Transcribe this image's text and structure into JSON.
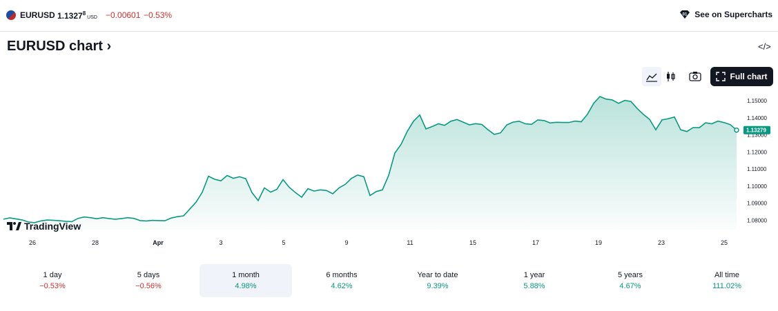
{
  "header": {
    "symbol": "EURUSD",
    "price_main": "1.1327",
    "price_sup": "8",
    "currency": "USD",
    "change": "−0.00601",
    "change_pct": "−0.53%",
    "supercharts_label": "See on Supercharts"
  },
  "title": "EURUSD chart",
  "title_chevron": "›",
  "embed_icon_glyph": "</>",
  "toolbar": {
    "full_chart_label": "Full chart"
  },
  "logo_text": "TradingView",
  "colors": {
    "line": "#089981",
    "negative": "#d32f2f",
    "positive": "#089981",
    "text": "#131722"
  },
  "chart_data": {
    "type": "area",
    "x_tick_labels": [
      "26",
      "28",
      "Apr",
      "3",
      "5",
      "9",
      "11",
      "15",
      "17",
      "19",
      "23",
      "25"
    ],
    "y_tick_labels": [
      "1.15000",
      "1.14000",
      "1.13000",
      "1.12000",
      "1.11000",
      "1.10000",
      "1.09000",
      "1.08000"
    ],
    "y_ticks": [
      1.15,
      1.14,
      1.13,
      1.12,
      1.11,
      1.1,
      1.09,
      1.08
    ],
    "ylim": [
      1.0745,
      1.1545
    ],
    "last_price_label": "1.13279",
    "last_price": 1.13279,
    "series": [
      {
        "values": [
          1.0806,
          1.0814,
          1.0808,
          1.0802,
          1.079,
          1.0786,
          1.0796,
          1.0801,
          1.08,
          1.0797,
          1.0794,
          1.0792,
          1.0811,
          1.0819,
          1.0815,
          1.0809,
          1.0815,
          1.081,
          1.0806,
          1.081,
          1.0815,
          1.0811,
          1.0798,
          1.0796,
          1.0799,
          1.0798,
          1.0797,
          1.0813,
          1.0821,
          1.0826,
          1.0866,
          1.0906,
          1.0964,
          1.1058,
          1.104,
          1.1031,
          1.1062,
          1.1046,
          1.1055,
          1.1043,
          1.0962,
          1.0915,
          1.099,
          1.0965,
          1.0981,
          1.1038,
          1.0993,
          1.0962,
          1.0935,
          1.0985,
          1.0971,
          1.0978,
          1.0974,
          1.0955,
          1.0989,
          1.101,
          1.1045,
          1.1065,
          1.1055,
          1.0945,
          1.0968,
          1.0978,
          1.1063,
          1.1194,
          1.1245,
          1.1321,
          1.138,
          1.1417,
          1.1335,
          1.1349,
          1.1365,
          1.1356,
          1.138,
          1.139,
          1.1375,
          1.1359,
          1.1366,
          1.1361,
          1.133,
          1.1303,
          1.1312,
          1.1358,
          1.1375,
          1.138,
          1.1365,
          1.1362,
          1.1388,
          1.1384,
          1.137,
          1.1374,
          1.1373,
          1.1373,
          1.1381,
          1.1377,
          1.1421,
          1.1485,
          1.1525,
          1.151,
          1.1505,
          1.1485,
          1.1502,
          1.1496,
          1.1455,
          1.142,
          1.1391,
          1.133,
          1.1388,
          1.1395,
          1.1405,
          1.133,
          1.132,
          1.1343,
          1.1342,
          1.1371,
          1.1365,
          1.1381,
          1.1372,
          1.136,
          1.1328
        ]
      }
    ],
    "grid": false,
    "legend": "none"
  },
  "periods": [
    {
      "label": "1 day",
      "value": "−0.53%",
      "sign": "neg",
      "active": false
    },
    {
      "label": "5 days",
      "value": "−0.56%",
      "sign": "neg",
      "active": false
    },
    {
      "label": "1 month",
      "value": "4.98%",
      "sign": "pos",
      "active": true
    },
    {
      "label": "6 months",
      "value": "4.62%",
      "sign": "pos",
      "active": false
    },
    {
      "label": "Year to date",
      "value": "9.39%",
      "sign": "pos",
      "active": false
    },
    {
      "label": "1 year",
      "value": "5.88%",
      "sign": "pos",
      "active": false
    },
    {
      "label": "5 years",
      "value": "4.67%",
      "sign": "pos",
      "active": false
    },
    {
      "label": "All time",
      "value": "111.02%",
      "sign": "pos",
      "active": false
    }
  ]
}
